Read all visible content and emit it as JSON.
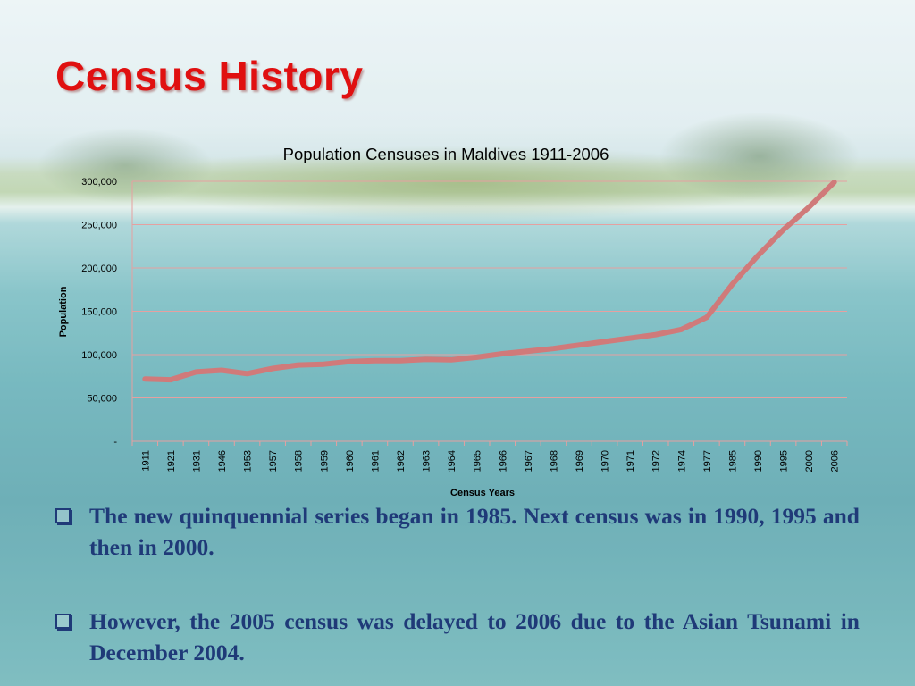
{
  "slide": {
    "title": "Census History",
    "bullets": [
      "The new quinquennial series began in 1985. Next census was in 1990, 1995 and then in 2000.",
      "However, the 2005 census was delayed to 2006 due to the Asian Tsunami in December 2004."
    ]
  },
  "colors": {
    "title": "#e01010",
    "bullet_text": "#1f3a78",
    "series_line": "#d07a7a",
    "gridline": "#e6a0a0"
  },
  "chart_data": {
    "type": "line",
    "title": "Population Censuses in Maldives 1911-2006",
    "xlabel": "Census Years",
    "ylabel": "Population",
    "ylim": [
      0,
      300000
    ],
    "y_ticks": [
      0,
      50000,
      100000,
      150000,
      200000,
      250000,
      300000
    ],
    "y_tick_labels": [
      "-",
      "50,000",
      "100,000",
      "150,000",
      "200,000",
      "250,000",
      "300,000"
    ],
    "grid": true,
    "legend": "none",
    "categories": [
      "1911",
      "1921",
      "1931",
      "1946",
      "1953",
      "1957",
      "1958",
      "1959",
      "1960",
      "1961",
      "1962",
      "1963",
      "1964",
      "1965",
      "1966",
      "1967",
      "1968",
      "1969",
      "1970",
      "1971",
      "1972",
      "1974",
      "1977",
      "1985",
      "1990",
      "1995",
      "2000",
      "2006"
    ],
    "series": [
      {
        "values": [
          72000,
          71000,
          80000,
          82000,
          78000,
          84000,
          88000,
          89000,
          92000,
          93000,
          93000,
          94500,
          94000,
          97000,
          101000,
          104000,
          107000,
          111000,
          115000,
          119000,
          123000,
          129000,
          143000,
          181000,
          214000,
          244000,
          270000,
          299000
        ]
      }
    ]
  }
}
